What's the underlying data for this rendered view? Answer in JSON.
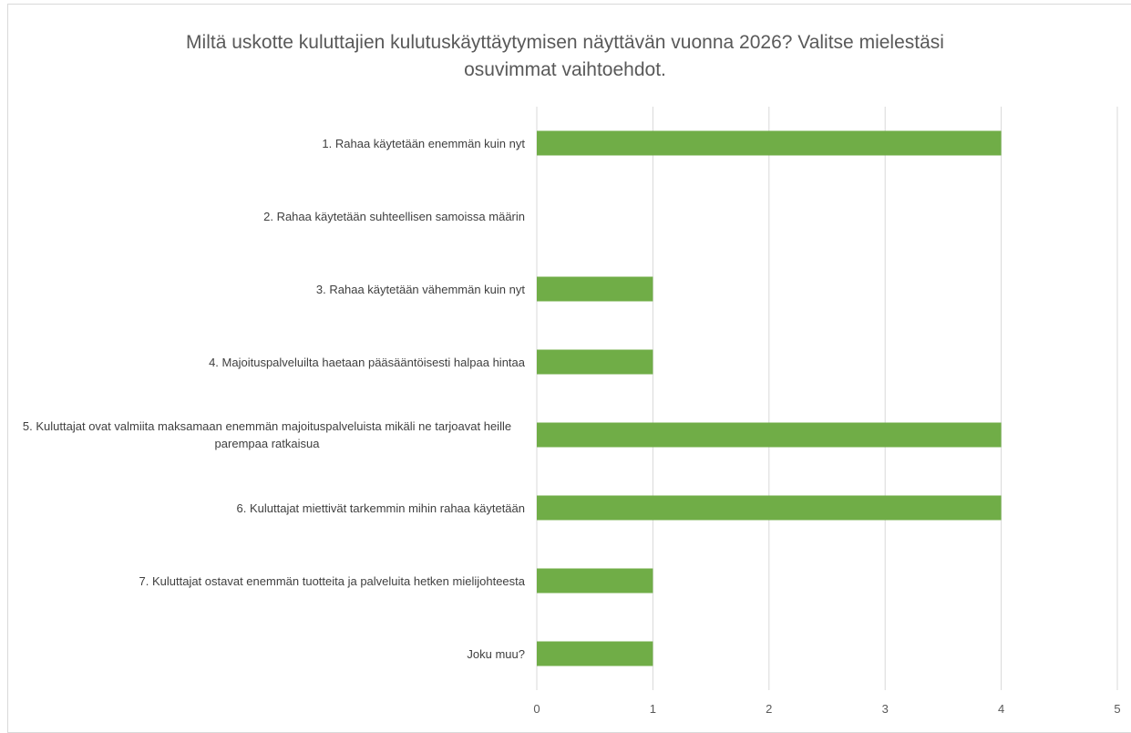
{
  "chart_data": {
    "type": "bar",
    "orientation": "horizontal",
    "title": "Miltä uskotte kuluttajien kulutuskäyttäytymisen näyttävän vuonna 2026? Valitse mielestäsi osuvimmat vaihtoehdot.",
    "categories": [
      "1. Rahaa käytetään enemmän kuin nyt",
      "2. Rahaa käytetään suhteellisen samoissa määrin",
      "3. Rahaa käytetään vähemmän kuin nyt",
      "4. Majoituspalveluilta haetaan pääsääntöisesti halpaa hintaa",
      "5. Kuluttajat ovat valmiita maksamaan enemmän majoituspalveluista mikäli ne tarjoavat heille parempaa ratkaisua",
      "6. Kuluttajat miettivät tarkemmin mihin rahaa käytetään",
      "7. Kuluttajat ostavat enemmän tuotteita ja palveluita hetken mielijohteesta",
      "Joku muu?"
    ],
    "values": [
      4,
      0,
      1,
      1,
      4,
      4,
      1,
      1
    ],
    "color": "#70ad47",
    "xlim": [
      0,
      5
    ],
    "xticks": [
      0,
      1,
      2,
      3,
      4,
      5
    ],
    "grid": true
  }
}
